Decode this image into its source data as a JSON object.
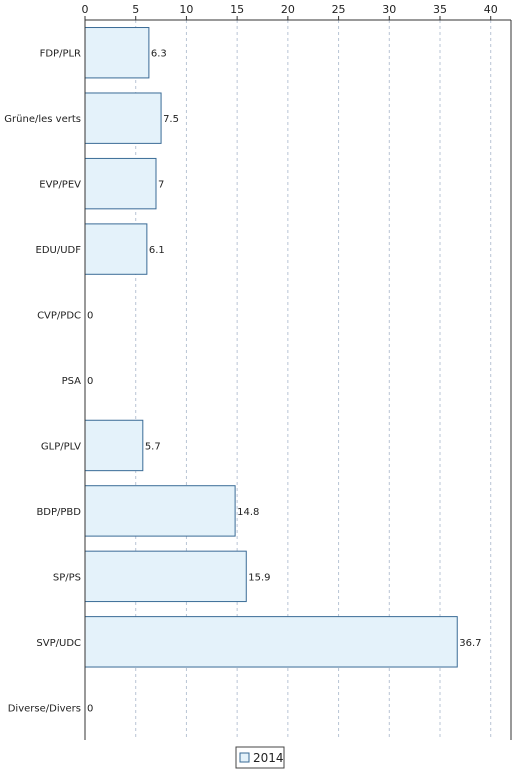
{
  "chart_data": {
    "type": "bar",
    "orientation": "horizontal",
    "categories": [
      "FDP/PLR",
      "Grüne/les verts",
      "EVP/PEV",
      "EDU/UDF",
      "CVP/PDC",
      "PSA",
      "GLP/PLV",
      "BDP/PBD",
      "SP/PS",
      "SVP/UDC",
      "Diverse/Divers"
    ],
    "series": [
      {
        "name": "2014",
        "values": [
          6.3,
          7.5,
          7,
          6.1,
          0,
          0,
          5.7,
          14.8,
          15.9,
          36.7,
          0
        ]
      }
    ],
    "value_labels": [
      "6.3",
      "7.5",
      "7",
      "6.1",
      "0",
      "0",
      "5.7",
      "14.8",
      "15.9",
      "36.7",
      "0"
    ],
    "xticks": [
      0,
      5,
      10,
      15,
      20,
      25,
      30,
      35,
      40
    ],
    "xlim": [
      0,
      42
    ],
    "axis_position": "top",
    "grid": true,
    "legend_position": "bottom",
    "colors": {
      "bar_fill": "#e4f2fa",
      "bar_stroke": "#3a6b96",
      "grid": "#b8c4d4"
    }
  }
}
